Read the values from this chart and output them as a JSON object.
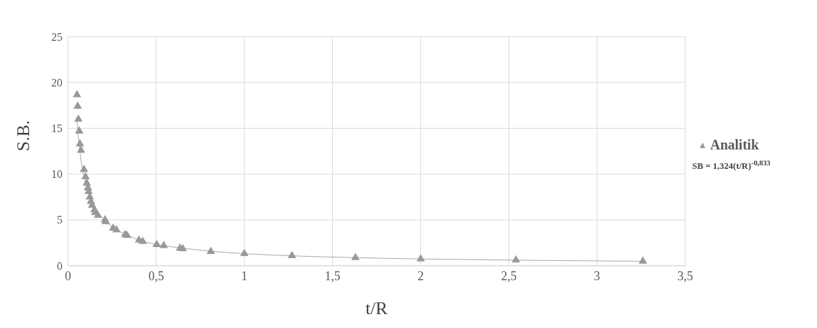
{
  "chart_data": {
    "type": "scatter",
    "xlabel": "t/R",
    "ylabel": "S.B.",
    "series": [
      {
        "name": "Analitik",
        "color": "#999999",
        "marker": "triangle",
        "x": [
          0.051,
          0.055,
          0.059,
          0.064,
          0.068,
          0.074,
          0.091,
          0.1,
          0.107,
          0.113,
          0.117,
          0.124,
          0.13,
          0.137,
          0.15,
          0.155,
          0.17,
          0.21,
          0.215,
          0.256,
          0.275,
          0.324,
          0.335,
          0.403,
          0.424,
          0.503,
          0.543,
          0.635,
          0.651,
          0.81,
          1.0,
          1.27,
          1.63,
          2.0,
          2.54,
          3.26
        ],
        "values": [
          18.65,
          17.4,
          16.0,
          14.7,
          13.3,
          12.6,
          10.5,
          9.7,
          9.0,
          8.5,
          8.1,
          7.5,
          7.0,
          6.6,
          6.1,
          5.8,
          5.5,
          5.0,
          4.8,
          4.1,
          3.9,
          3.4,
          3.3,
          2.8,
          2.65,
          2.3,
          2.2,
          1.9,
          1.85,
          1.55,
          1.32,
          1.1,
          0.88,
          0.74,
          0.62,
          0.5
        ]
      },
      {
        "type": "line",
        "color": "#a6a6a6",
        "marker": "none",
        "x": [
          0.051,
          0.06,
          0.07,
          0.08,
          0.1,
          0.13,
          0.17,
          0.21,
          0.26,
          0.33,
          0.42,
          0.54,
          0.66,
          0.82,
          1.0,
          1.27,
          1.63,
          2.0,
          2.54,
          3.26
        ],
        "values": [
          15.8,
          13.8,
          12.1,
          10.8,
          9.0,
          7.2,
          5.8,
          4.9,
          4.1,
          3.4,
          2.7,
          2.2,
          1.9,
          1.56,
          1.32,
          1.08,
          0.88,
          0.74,
          0.61,
          0.49
        ]
      }
    ],
    "xlim": [
      0,
      3.5
    ],
    "xticks": [
      0,
      {
        "value": 0.5,
        "label": "0,5"
      },
      1,
      {
        "value": 1.5,
        "label": "1,5"
      },
      2,
      {
        "value": 2.5,
        "label": "2,5"
      },
      3,
      {
        "value": 3.5,
        "label": "3,5"
      }
    ],
    "ylim": [
      0,
      25
    ],
    "yticks": [
      0,
      5,
      10,
      15,
      20,
      25
    ],
    "grid": true,
    "legend": "right",
    "annotations": [
      "SB = 1,324(t/R)$^{-0,833}$"
    ]
  }
}
